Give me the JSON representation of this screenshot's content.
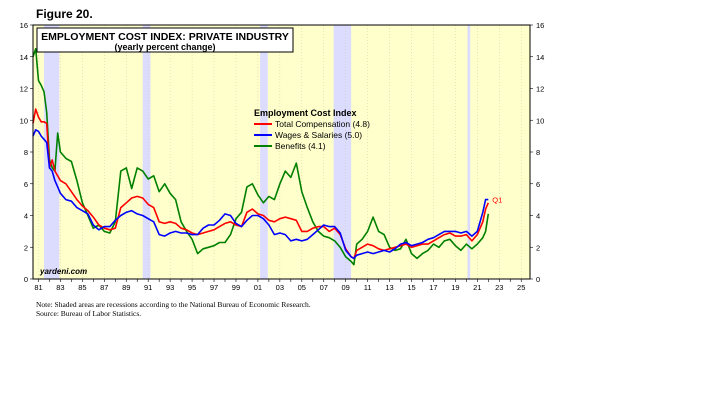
{
  "figure_label": "Figure 20.",
  "source_tag": "yardeni.com",
  "notes": [
    "Note: Shaded areas are recessions according to the National Bureau of Economic Research.",
    "Source: Bureau of Labor Statistics."
  ],
  "colors": {
    "plot_bg": "#ffffcc",
    "recession": "#dcdcff",
    "total": "#ff0000",
    "wages": "#0000ff",
    "benefits": "#008000"
  },
  "chart_data": {
    "type": "line",
    "title": "EMPLOYMENT COST INDEX: PRIVATE INDUSTRY",
    "subtitle": "(yearly percent change)",
    "legend_title": "Employment Cost Index",
    "legend_position": "top-center",
    "xlim": [
      1980.5,
      2025.8
    ],
    "ylim": [
      0,
      16
    ],
    "y_ticks": [
      0,
      2,
      4,
      6,
      8,
      10,
      12,
      14,
      16
    ],
    "x_tick_labels": [
      "81",
      "83",
      "85",
      "87",
      "89",
      "91",
      "93",
      "95",
      "97",
      "99",
      "01",
      "03",
      "05",
      "07",
      "09",
      "11",
      "13",
      "15",
      "17",
      "19",
      "21",
      "23",
      "25"
    ],
    "recessions": [
      [
        1981.5,
        1982.9
      ],
      [
        1990.5,
        1991.2
      ],
      [
        2001.2,
        2001.9
      ],
      [
        2007.9,
        2009.5
      ],
      [
        2020.1,
        2020.35
      ]
    ],
    "end_annotation": "Q1",
    "series": [
      {
        "name": "Total Compensation (4.8)",
        "key": "total",
        "points": [
          [
            1980.5,
            9.8
          ],
          [
            1980.75,
            10.7
          ],
          [
            1981,
            10.2
          ],
          [
            1981.25,
            9.9
          ],
          [
            1981.5,
            9.9
          ],
          [
            1981.75,
            9.8
          ],
          [
            1982,
            7.0
          ],
          [
            1982.25,
            7.5
          ],
          [
            1982.5,
            6.8
          ],
          [
            1982.75,
            6.5
          ],
          [
            1983,
            6.2
          ],
          [
            1983.5,
            6.0
          ],
          [
            1984,
            5.5
          ],
          [
            1984.5,
            5.0
          ],
          [
            1985,
            4.6
          ],
          [
            1985.5,
            4.3
          ],
          [
            1986,
            3.9
          ],
          [
            1986.5,
            3.4
          ],
          [
            1987,
            3.2
          ],
          [
            1987.5,
            3.1
          ],
          [
            1988,
            3.2
          ],
          [
            1988.5,
            4.5
          ],
          [
            1989,
            4.8
          ],
          [
            1989.5,
            5.1
          ],
          [
            1990,
            5.2
          ],
          [
            1990.5,
            5.1
          ],
          [
            1991,
            4.7
          ],
          [
            1991.5,
            4.5
          ],
          [
            1992,
            3.6
          ],
          [
            1992.5,
            3.5
          ],
          [
            1993,
            3.6
          ],
          [
            1993.5,
            3.5
          ],
          [
            1994,
            3.2
          ],
          [
            1994.5,
            3.1
          ],
          [
            1995,
            2.9
          ],
          [
            1995.5,
            2.8
          ],
          [
            1996,
            2.9
          ],
          [
            1996.5,
            3.0
          ],
          [
            1997,
            3.1
          ],
          [
            1997.5,
            3.3
          ],
          [
            1998,
            3.5
          ],
          [
            1998.5,
            3.6
          ],
          [
            1999,
            3.4
          ],
          [
            1999.5,
            3.3
          ],
          [
            2000,
            4.2
          ],
          [
            2000.5,
            4.4
          ],
          [
            2001,
            4.1
          ],
          [
            2001.5,
            4.0
          ],
          [
            2002,
            3.7
          ],
          [
            2002.5,
            3.6
          ],
          [
            2003,
            3.8
          ],
          [
            2003.5,
            3.9
          ],
          [
            2004,
            3.8
          ],
          [
            2004.5,
            3.7
          ],
          [
            2005,
            3.0
          ],
          [
            2005.5,
            3.0
          ],
          [
            2006,
            3.2
          ],
          [
            2006.5,
            3.3
          ],
          [
            2007,
            3.3
          ],
          [
            2007.5,
            3.0
          ],
          [
            2008,
            3.2
          ],
          [
            2008.5,
            2.8
          ],
          [
            2009,
            1.9
          ],
          [
            2009.5,
            1.4
          ],
          [
            2009.75,
            1.3
          ],
          [
            2010,
            1.8
          ],
          [
            2010.5,
            2.0
          ],
          [
            2011,
            2.2
          ],
          [
            2011.5,
            2.1
          ],
          [
            2012,
            1.9
          ],
          [
            2012.5,
            1.8
          ],
          [
            2013,
            1.9
          ],
          [
            2013.5,
            2.0
          ],
          [
            2014,
            2.1
          ],
          [
            2014.5,
            2.2
          ],
          [
            2015,
            2.0
          ],
          [
            2015.5,
            2.1
          ],
          [
            2016,
            2.2
          ],
          [
            2016.5,
            2.2
          ],
          [
            2017,
            2.4
          ],
          [
            2017.5,
            2.6
          ],
          [
            2018,
            2.8
          ],
          [
            2018.5,
            2.9
          ],
          [
            2019,
            2.7
          ],
          [
            2019.5,
            2.7
          ],
          [
            2020,
            2.8
          ],
          [
            2020.5,
            2.4
          ],
          [
            2021,
            2.8
          ],
          [
            2021.5,
            3.6
          ],
          [
            2021.75,
            4.4
          ],
          [
            2022,
            4.8
          ]
        ]
      },
      {
        "name": "Wages & Salaries (5.0)",
        "key": "wages",
        "points": [
          [
            1980.5,
            9.0
          ],
          [
            1980.75,
            9.4
          ],
          [
            1981,
            9.3
          ],
          [
            1981.25,
            9.0
          ],
          [
            1981.5,
            8.8
          ],
          [
            1981.75,
            8.6
          ],
          [
            1982,
            7.0
          ],
          [
            1982.25,
            6.8
          ],
          [
            1982.5,
            6.2
          ],
          [
            1982.75,
            5.8
          ],
          [
            1983,
            5.4
          ],
          [
            1983.5,
            5.0
          ],
          [
            1984,
            4.9
          ],
          [
            1984.5,
            4.5
          ],
          [
            1985,
            4.3
          ],
          [
            1985.5,
            4.1
          ],
          [
            1986,
            3.4
          ],
          [
            1986.5,
            3.1
          ],
          [
            1987,
            3.3
          ],
          [
            1987.5,
            3.3
          ],
          [
            1988,
            3.7
          ],
          [
            1988.5,
            4.0
          ],
          [
            1989,
            4.2
          ],
          [
            1989.5,
            4.3
          ],
          [
            1990,
            4.1
          ],
          [
            1990.5,
            4.0
          ],
          [
            1991,
            3.8
          ],
          [
            1991.5,
            3.6
          ],
          [
            1992,
            2.8
          ],
          [
            1992.5,
            2.7
          ],
          [
            1993,
            2.9
          ],
          [
            1993.5,
            3.0
          ],
          [
            1994,
            2.9
          ],
          [
            1994.5,
            2.9
          ],
          [
            1995,
            2.8
          ],
          [
            1995.5,
            2.8
          ],
          [
            1996,
            3.2
          ],
          [
            1996.5,
            3.4
          ],
          [
            1997,
            3.4
          ],
          [
            1997.5,
            3.7
          ],
          [
            1998,
            4.1
          ],
          [
            1998.5,
            4.0
          ],
          [
            1999,
            3.5
          ],
          [
            1999.5,
            3.3
          ],
          [
            2000,
            3.7
          ],
          [
            2000.5,
            4.0
          ],
          [
            2001,
            4.0
          ],
          [
            2001.5,
            3.8
          ],
          [
            2002,
            3.4
          ],
          [
            2002.5,
            2.8
          ],
          [
            2003,
            2.9
          ],
          [
            2003.5,
            2.8
          ],
          [
            2004,
            2.4
          ],
          [
            2004.5,
            2.5
          ],
          [
            2005,
            2.4
          ],
          [
            2005.5,
            2.5
          ],
          [
            2006,
            2.8
          ],
          [
            2006.5,
            3.1
          ],
          [
            2007,
            3.4
          ],
          [
            2007.5,
            3.3
          ],
          [
            2008,
            3.3
          ],
          [
            2008.5,
            2.9
          ],
          [
            2009,
            1.8
          ],
          [
            2009.5,
            1.4
          ],
          [
            2009.75,
            1.3
          ],
          [
            2010,
            1.5
          ],
          [
            2010.5,
            1.6
          ],
          [
            2011,
            1.7
          ],
          [
            2011.5,
            1.6
          ],
          [
            2012,
            1.7
          ],
          [
            2012.5,
            1.8
          ],
          [
            2013,
            1.7
          ],
          [
            2013.5,
            1.9
          ],
          [
            2014,
            2.2
          ],
          [
            2014.5,
            2.3
          ],
          [
            2015,
            2.1
          ],
          [
            2015.5,
            2.2
          ],
          [
            2016,
            2.3
          ],
          [
            2016.5,
            2.5
          ],
          [
            2017,
            2.6
          ],
          [
            2017.5,
            2.8
          ],
          [
            2018,
            3.0
          ],
          [
            2018.5,
            3.0
          ],
          [
            2019,
            3.0
          ],
          [
            2019.5,
            2.9
          ],
          [
            2020,
            3.0
          ],
          [
            2020.5,
            2.7
          ],
          [
            2021,
            3.0
          ],
          [
            2021.5,
            4.2
          ],
          [
            2021.75,
            5.0
          ],
          [
            2022,
            5.0
          ]
        ]
      },
      {
        "name": "Benefits (4.1)",
        "key": "benefits",
        "points": [
          [
            1980.5,
            14.0
          ],
          [
            1980.75,
            14.5
          ],
          [
            1981,
            12.5
          ],
          [
            1981.25,
            12.2
          ],
          [
            1981.5,
            11.8
          ],
          [
            1981.75,
            10.5
          ],
          [
            1982,
            7.5
          ],
          [
            1982.25,
            7.0
          ],
          [
            1982.5,
            6.8
          ],
          [
            1982.75,
            9.2
          ],
          [
            1983,
            8.0
          ],
          [
            1983.5,
            7.6
          ],
          [
            1984,
            7.4
          ],
          [
            1984.5,
            6.2
          ],
          [
            1985,
            4.8
          ],
          [
            1985.5,
            4.0
          ],
          [
            1986,
            3.2
          ],
          [
            1986.5,
            3.4
          ],
          [
            1987,
            3.0
          ],
          [
            1987.5,
            2.9
          ],
          [
            1988,
            3.6
          ],
          [
            1988.5,
            6.8
          ],
          [
            1989,
            7.0
          ],
          [
            1989.5,
            5.7
          ],
          [
            1990,
            7.0
          ],
          [
            1990.5,
            6.8
          ],
          [
            1991,
            6.3
          ],
          [
            1991.5,
            6.5
          ],
          [
            1992,
            5.5
          ],
          [
            1992.5,
            6.0
          ],
          [
            1993,
            5.4
          ],
          [
            1993.5,
            5.0
          ],
          [
            1994,
            3.6
          ],
          [
            1994.5,
            3.0
          ],
          [
            1995,
            2.5
          ],
          [
            1995.5,
            1.6
          ],
          [
            1996,
            1.9
          ],
          [
            1996.5,
            2.0
          ],
          [
            1997,
            2.1
          ],
          [
            1997.5,
            2.3
          ],
          [
            1998,
            2.3
          ],
          [
            1998.5,
            2.8
          ],
          [
            1999,
            3.8
          ],
          [
            1999.5,
            4.2
          ],
          [
            2000,
            5.8
          ],
          [
            2000.5,
            6.0
          ],
          [
            2001,
            5.3
          ],
          [
            2001.5,
            4.8
          ],
          [
            2002,
            5.2
          ],
          [
            2002.5,
            5.0
          ],
          [
            2003,
            6.0
          ],
          [
            2003.5,
            6.8
          ],
          [
            2004,
            6.4
          ],
          [
            2004.5,
            7.3
          ],
          [
            2005,
            5.5
          ],
          [
            2005.5,
            4.5
          ],
          [
            2006,
            3.6
          ],
          [
            2006.5,
            3.0
          ],
          [
            2007,
            2.7
          ],
          [
            2007.5,
            2.6
          ],
          [
            2008,
            2.4
          ],
          [
            2008.5,
            2.0
          ],
          [
            2009,
            1.4
          ],
          [
            2009.5,
            1.1
          ],
          [
            2009.75,
            0.9
          ],
          [
            2010,
            2.2
          ],
          [
            2010.5,
            2.5
          ],
          [
            2011,
            3.0
          ],
          [
            2011.5,
            3.9
          ],
          [
            2012,
            3.0
          ],
          [
            2012.5,
            2.8
          ],
          [
            2013,
            2.0
          ],
          [
            2013.5,
            1.8
          ],
          [
            2014,
            1.9
          ],
          [
            2014.5,
            2.5
          ],
          [
            2015,
            1.6
          ],
          [
            2015.5,
            1.3
          ],
          [
            2016,
            1.6
          ],
          [
            2016.5,
            1.8
          ],
          [
            2017,
            2.2
          ],
          [
            2017.5,
            2.0
          ],
          [
            2018,
            2.4
          ],
          [
            2018.5,
            2.5
          ],
          [
            2019,
            2.1
          ],
          [
            2019.5,
            1.8
          ],
          [
            2020,
            2.2
          ],
          [
            2020.5,
            1.9
          ],
          [
            2021,
            2.2
          ],
          [
            2021.5,
            2.6
          ],
          [
            2021.75,
            3.0
          ],
          [
            2022,
            4.1
          ]
        ]
      }
    ]
  }
}
